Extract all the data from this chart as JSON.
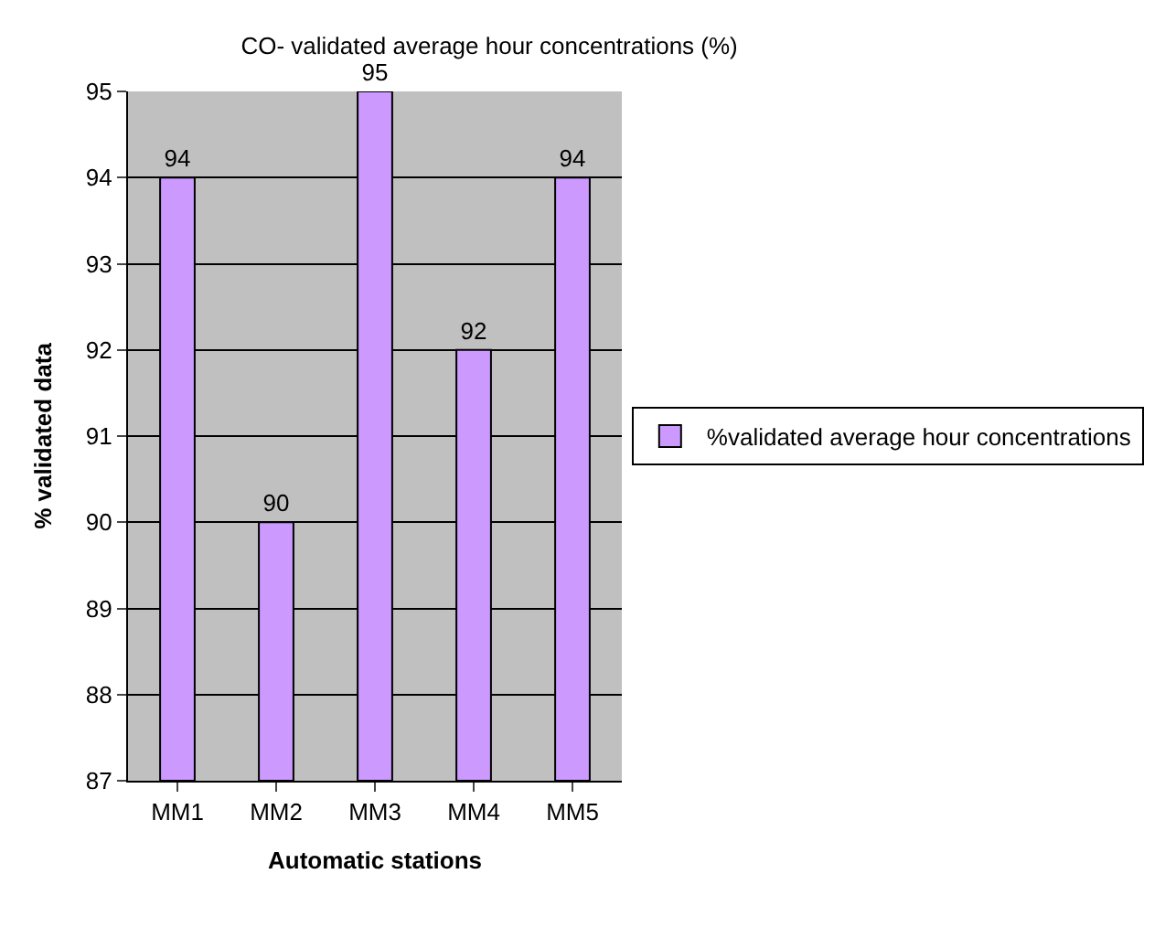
{
  "chart_data": {
    "type": "bar",
    "title": "CO- validated average hour concentrations (%)",
    "xlabel": "Automatic stations",
    "ylabel": "% validated data",
    "categories": [
      "MM1",
      "MM2",
      "MM3",
      "MM4",
      "MM5"
    ],
    "series": [
      {
        "name": "%validated average hour concentrations",
        "color": "#cc99ff",
        "values": [
          94,
          90,
          95,
          92,
          94
        ]
      }
    ],
    "ylim": [
      87,
      95
    ],
    "yticks": [
      87,
      88,
      89,
      90,
      91,
      92,
      93,
      94,
      95
    ],
    "grid": "y",
    "legend": "right",
    "data_labels": true
  }
}
